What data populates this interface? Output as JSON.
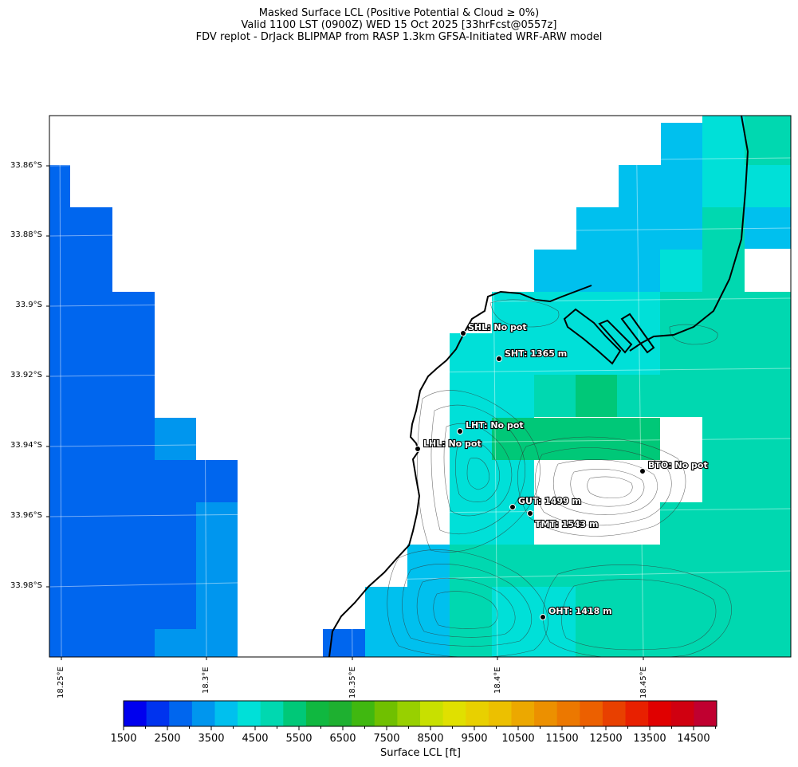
{
  "title": {
    "line1": "Masked Surface LCL (Positive Potential & Cloud ≥ 0%)",
    "line2": "Valid 1100 LST (0900Z) WED 15 Oct 2025 [33hrFcst@0557z]",
    "line3": "FDV replot - DrJack BLIPMAP from RASP 1.3km GFSA-Initiated WRF-ARW model"
  },
  "axes": {
    "lat_labels": [
      "33.86°S",
      "33.88°S",
      "33.9°S",
      "33.92°S",
      "33.94°S",
      "33.96°S",
      "33.98°S"
    ],
    "lon_labels": [
      "18.25°E",
      "18.3°E",
      "18.35°E",
      "18.4°E",
      "18.45°E"
    ]
  },
  "stations": [
    {
      "label": "SHL: No pot"
    },
    {
      "label": "SHT: 1365 m"
    },
    {
      "label": "LHT: No pot"
    },
    {
      "label": "LHL: No pot"
    },
    {
      "label": "BTO: No pot"
    },
    {
      "label": "GUT: 1499 m"
    },
    {
      "label": "TMT: 1543 m"
    },
    {
      "label": "OHT: 1418 m"
    }
  ],
  "colorbar": {
    "label": "Surface LCL [ft]",
    "ticks": [
      "1500",
      "2500",
      "3500",
      "4500",
      "5500",
      "6500",
      "7500",
      "8500",
      "9500",
      "10500",
      "11500",
      "12500",
      "13500",
      "14500"
    ],
    "colors": [
      "#0000ee",
      "#0033ee",
      "#0066ee",
      "#0096ee",
      "#00c0ee",
      "#00e0d8",
      "#00d8b0",
      "#00c878",
      "#10b840",
      "#1eb030",
      "#40b810",
      "#70c000",
      "#98d000",
      "#c8e000",
      "#e0e000",
      "#e8d000",
      "#ecc000",
      "#eca800",
      "#ec9000",
      "#ec7800",
      "#ec6000",
      "#e84000",
      "#e82000",
      "#e00000",
      "#d00010",
      "#c00030"
    ]
  }
}
